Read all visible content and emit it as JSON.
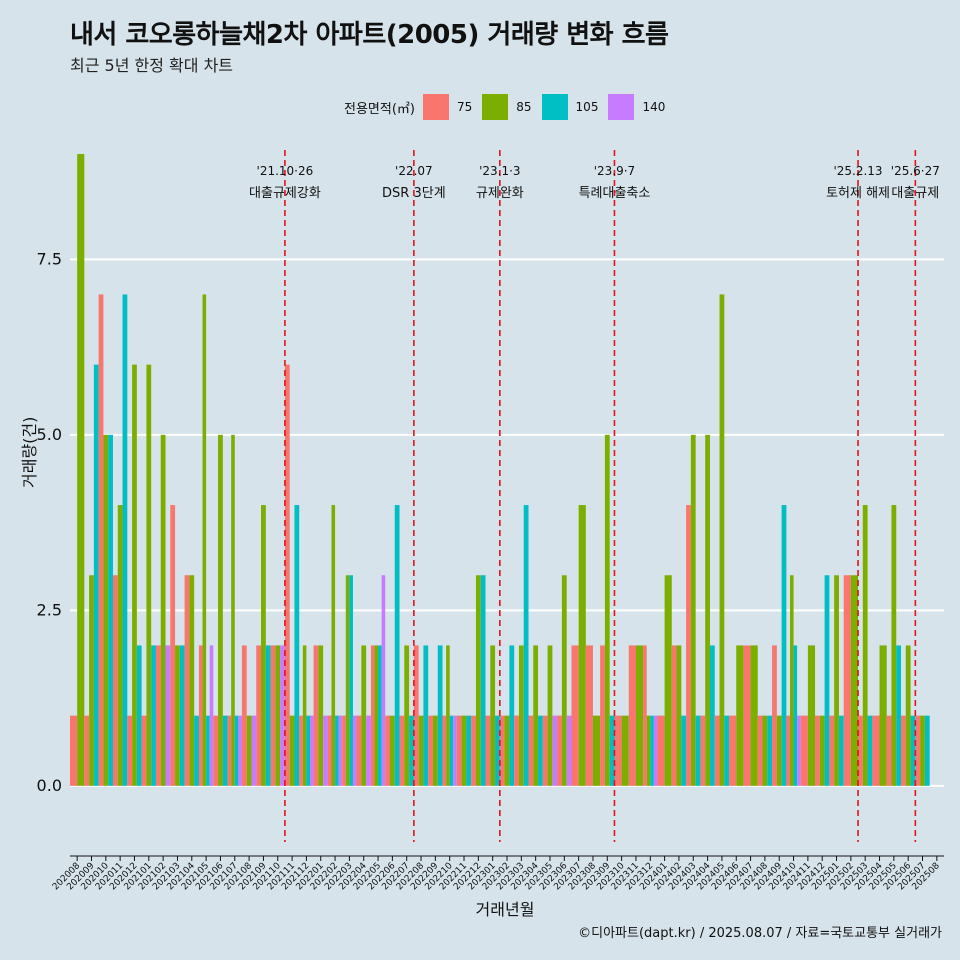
{
  "title": "내서 코오롱하늘채2차 아파트(2005) 거래량 변화 흐름",
  "subtitle": "최근 5년 한정 확대 차트",
  "caption": "©디아파트(dapt.kr) / 2025.08.07 / 자료=국토교통부 실거래가",
  "legend": {
    "title": "전용면적(㎡)",
    "items": [
      {
        "label": "75",
        "color": "#f8766d"
      },
      {
        "label": "85",
        "color": "#7cae00"
      },
      {
        "label": "105",
        "color": "#00bfc4"
      },
      {
        "label": "140",
        "color": "#c77cff"
      }
    ]
  },
  "chart_data": {
    "type": "bar",
    "xlabel": "거래년월",
    "ylabel": "거래량(건)",
    "ylim": [
      -0.8,
      9.2
    ],
    "yticks": [
      0.0,
      2.5,
      5.0,
      7.5
    ],
    "ytick_labels": [
      "0.0",
      "2.5",
      "5.0",
      "7.5"
    ],
    "grid": true,
    "legend_position": "top",
    "categories": [
      "202008",
      "202009",
      "202010",
      "202011",
      "202012",
      "202101",
      "202102",
      "202103",
      "202104",
      "202105",
      "202106",
      "202107",
      "202108",
      "202109",
      "202110",
      "202111",
      "202112",
      "202201",
      "202202",
      "202203",
      "202204",
      "202205",
      "202206",
      "202207",
      "202208",
      "202209",
      "202210",
      "202211",
      "202212",
      "202301",
      "202302",
      "202303",
      "202304",
      "202305",
      "202306",
      "202307",
      "202308",
      "202309",
      "202310",
      "202311",
      "202312",
      "202401",
      "202402",
      "202403",
      "202404",
      "202405",
      "202406",
      "202407",
      "202408",
      "202409",
      "202410",
      "202411",
      "202412",
      "202501",
      "202502",
      "202503",
      "202504",
      "202505",
      "202506",
      "202507",
      "202508"
    ],
    "series": [
      {
        "name": "75",
        "color": "#f8766d",
        "values": [
          1,
          1,
          7,
          3,
          1,
          1,
          2,
          4,
          3,
          2,
          1,
          1,
          2,
          2,
          2,
          6,
          1,
          2,
          1,
          1,
          1,
          2,
          1,
          1,
          2,
          1,
          1,
          1,
          1,
          1,
          1,
          1,
          1,
          1,
          1,
          2,
          2,
          2,
          1,
          2,
          2,
          1,
          2,
          4,
          1,
          1,
          1,
          2,
          1,
          2,
          1,
          1,
          1,
          1,
          3,
          1,
          1,
          1,
          1,
          1,
          0
        ]
      },
      {
        "name": "85",
        "color": "#7cae00",
        "values": [
          9,
          3,
          5,
          4,
          6,
          6,
          5,
          2,
          3,
          7,
          5,
          5,
          1,
          4,
          2,
          1,
          2,
          2,
          4,
          3,
          2,
          2,
          1,
          2,
          1,
          1,
          2,
          1,
          3,
          2,
          1,
          2,
          2,
          2,
          3,
          4,
          1,
          5,
          1,
          2,
          1,
          3,
          2,
          5,
          5,
          7,
          2,
          2,
          1,
          1,
          3,
          2,
          1,
          3,
          3,
          4,
          2,
          4,
          2,
          1,
          0
        ]
      },
      {
        "name": "105",
        "color": "#00bfc4",
        "values": [
          0,
          6,
          5,
          7,
          2,
          2,
          0,
          2,
          1,
          1,
          1,
          1,
          0,
          2,
          0,
          4,
          1,
          0,
          1,
          3,
          0,
          2,
          4,
          1,
          2,
          2,
          1,
          1,
          3,
          1,
          2,
          4,
          1,
          0,
          0,
          0,
          0,
          1,
          0,
          0,
          1,
          0,
          1,
          1,
          2,
          1,
          0,
          0,
          1,
          4,
          2,
          0,
          3,
          1,
          0,
          1,
          0,
          2,
          1,
          1,
          0
        ]
      },
      {
        "name": "140",
        "color": "#c77cff",
        "values": [
          0,
          0,
          0,
          0,
          0,
          0,
          2,
          0,
          0,
          2,
          0,
          1,
          1,
          0,
          2,
          0,
          1,
          1,
          1,
          1,
          1,
          3,
          0,
          0,
          0,
          0,
          1,
          0,
          0,
          0,
          0,
          0,
          0,
          1,
          1,
          0,
          0,
          0,
          0,
          0,
          1,
          0,
          0,
          0,
          0,
          0,
          0,
          0,
          0,
          0,
          1,
          0,
          0,
          0,
          0,
          0,
          0,
          0,
          0,
          0,
          0
        ]
      }
    ],
    "annotations": [
      {
        "after": "202110",
        "label_date": "'21.10·26",
        "label_text": "대출규제강화"
      },
      {
        "after": "202207",
        "label_date": "'22.07",
        "label_text": "DSR 3단계"
      },
      {
        "after": "202301",
        "label_date": "'23.1·3",
        "label_text": "규제완화"
      },
      {
        "after": "202309",
        "label_date": "'23.9·7",
        "label_text": "특례대출축소"
      },
      {
        "after": "202502",
        "label_date": "'25.2.13",
        "label_text": "토허제 해제"
      },
      {
        "after": "202506",
        "label_date": "'25.6·27",
        "label_text": "대출규제"
      }
    ]
  }
}
